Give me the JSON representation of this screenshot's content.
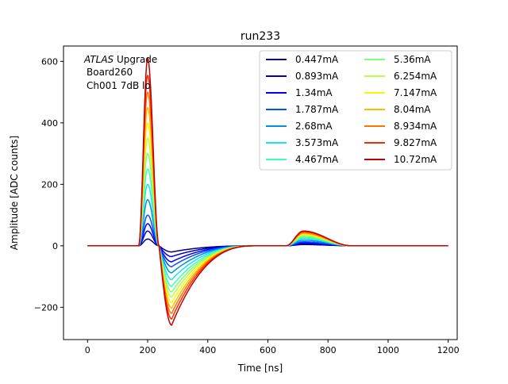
{
  "chart_data": {
    "type": "line",
    "title": "run233",
    "xlabel": "Time [ns]",
    "ylabel": "Amplitude [ADC counts]",
    "xlim": [
      -80,
      1230
    ],
    "ylim": [
      -305,
      650
    ],
    "xticks": [
      0,
      200,
      400,
      600,
      800,
      1000,
      1200
    ],
    "yticks": [
      -200,
      0,
      200,
      400,
      600
    ],
    "grid": false,
    "legend_position": "top-right",
    "legend_columns": 2,
    "annotation": {
      "atlas": "ATLAS",
      "upgrade": " Upgrade",
      "board": "Board260",
      "channel": "Ch001 7dB lo"
    },
    "pulse_model": {
      "pulse_start_ns": 170,
      "peak_ns": 200,
      "zero_cross_ns": 238,
      "undershoot_min_ns": 280,
      "tail_end_ns": 560,
      "bump_start_ns": 660,
      "bump_peak_ns": 718,
      "bump_end_ns": 880,
      "x_end_ns": 1200
    },
    "series": [
      {
        "name": "0.447mA",
        "color": "#00007f",
        "peak": 22,
        "undershoot": -20,
        "bump": 4
      },
      {
        "name": "0.893mA",
        "color": "#0000c8",
        "peak": 48,
        "undershoot": -35,
        "bump": 7
      },
      {
        "name": "1.34mA",
        "color": "#0000ff",
        "peak": 72,
        "undershoot": -52,
        "bump": 10
      },
      {
        "name": "1.787mA",
        "color": "#0051ff",
        "peak": 100,
        "undershoot": -68,
        "bump": 13
      },
      {
        "name": "2.68mA",
        "color": "#0092d8",
        "peak": 150,
        "undershoot": -88,
        "bump": 18
      },
      {
        "name": "3.573mA",
        "color": "#19e1fa",
        "peak": 200,
        "undershoot": -110,
        "bump": 23
      },
      {
        "name": "4.467mA",
        "color": "#3fffb7",
        "peak": 250,
        "undershoot": -132,
        "bump": 27
      },
      {
        "name": "5.36mA",
        "color": "#7cff79",
        "peak": 300,
        "undershoot": -150,
        "bump": 31
      },
      {
        "name": "6.254mA",
        "color": "#b7ff3f",
        "peak": 350,
        "undershoot": -167,
        "bump": 34
      },
      {
        "name": "7.147mA",
        "color": "#f4f802",
        "peak": 400,
        "undershoot": -185,
        "bump": 37
      },
      {
        "name": "8.04mA",
        "color": "#ffb900",
        "peak": 450,
        "undershoot": -203,
        "bump": 40
      },
      {
        "name": "8.934mA",
        "color": "#ff7300",
        "peak": 500,
        "undershoot": -220,
        "bump": 43
      },
      {
        "name": "9.827mA",
        "color": "#ff2900",
        "peak": 555,
        "undershoot": -238,
        "bump": 46
      },
      {
        "name": "10.72mA",
        "color": "#c30000",
        "peak": 610,
        "undershoot": -258,
        "bump": 48
      }
    ]
  }
}
